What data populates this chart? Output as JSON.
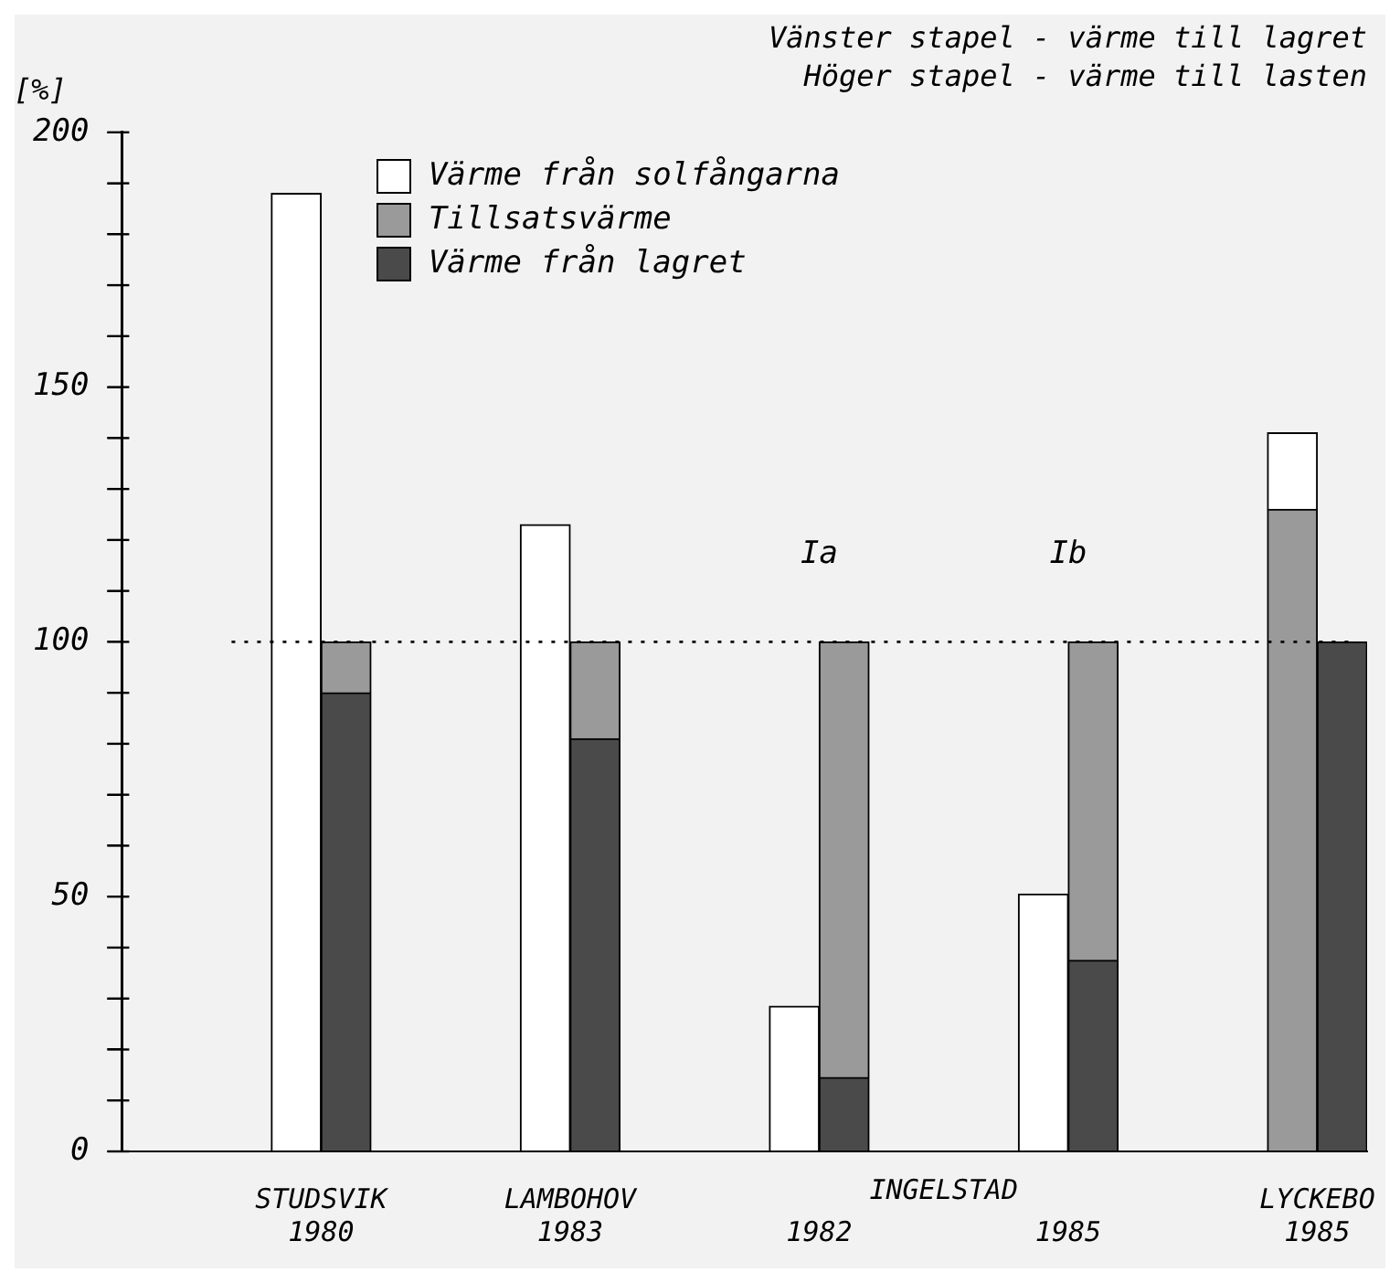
{
  "chart_data": {
    "type": "bar",
    "title": "Vänster stapel - värme till lagret",
    "subtitle": "Höger stapel - värme till lasten",
    "ylabel": "[%]",
    "categories": [
      null,
      null,
      null,
      "STUDSVIK\n1980",
      null,
      null,
      null,
      null,
      "LAMBOHOV\n1983",
      null,
      null,
      null,
      null,
      "1982",
      null,
      null,
      null,
      null,
      "1985",
      null,
      null,
      null,
      null,
      "LYCKEBO\n1985",
      null
    ],
    "stacked": true,
    "series": [
      {
        "name": "Värme från lagret",
        "color": "#4a4a4a",
        "values": [
          null,
          null,
          null,
          null,
          90,
          null,
          null,
          null,
          null,
          81,
          null,
          null,
          null,
          null,
          14.5,
          null,
          null,
          null,
          null,
          37.5,
          null,
          null,
          null,
          null,
          100
        ]
      },
      {
        "name": "Tillsatsvärme",
        "color": "#9a9a9a",
        "values": [
          null,
          null,
          null,
          null,
          10,
          null,
          null,
          null,
          null,
          19,
          null,
          null,
          null,
          null,
          85.5,
          null,
          null,
          null,
          null,
          62.5,
          null,
          null,
          null,
          126,
          null
        ]
      },
      {
        "name": "Värme från solfångarna",
        "color": "#ffffff",
        "values": [
          null,
          null,
          null,
          188,
          null,
          null,
          null,
          null,
          123,
          null,
          null,
          null,
          null,
          28.5,
          null,
          null,
          null,
          null,
          50.5,
          null,
          null,
          null,
          null,
          15,
          null
        ]
      }
    ],
    "ylim": [
      0,
      200
    ],
    "yticks": [
      0,
      {
        "value": 10,
        "label": null
      },
      {
        "value": 20,
        "label": null
      },
      {
        "value": 30,
        "label": null
      },
      {
        "value": 40,
        "label": null
      },
      50,
      {
        "value": 60,
        "label": null
      },
      {
        "value": 70,
        "label": null
      },
      {
        "value": 80,
        "label": null
      },
      {
        "value": 90,
        "label": null
      },
      100,
      {
        "value": 110,
        "label": null
      },
      {
        "value": 120,
        "label": null
      },
      {
        "value": 130,
        "label": null
      },
      {
        "value": 140,
        "label": null
      },
      150,
      {
        "value": 160,
        "label": null
      },
      {
        "value": 170,
        "label": null
      },
      {
        "value": 180,
        "label": null
      },
      {
        "value": 190,
        "label": null
      },
      200
    ],
    "ref_lines": [
      {
        "axis": "y",
        "value": 100,
        "line_style": "dotted",
        "color": "#000000"
      }
    ],
    "annotations": [
      "Ia",
      "Ib",
      "INGELSTAD"
    ],
    "grid": false,
    "legend": "top"
  }
}
